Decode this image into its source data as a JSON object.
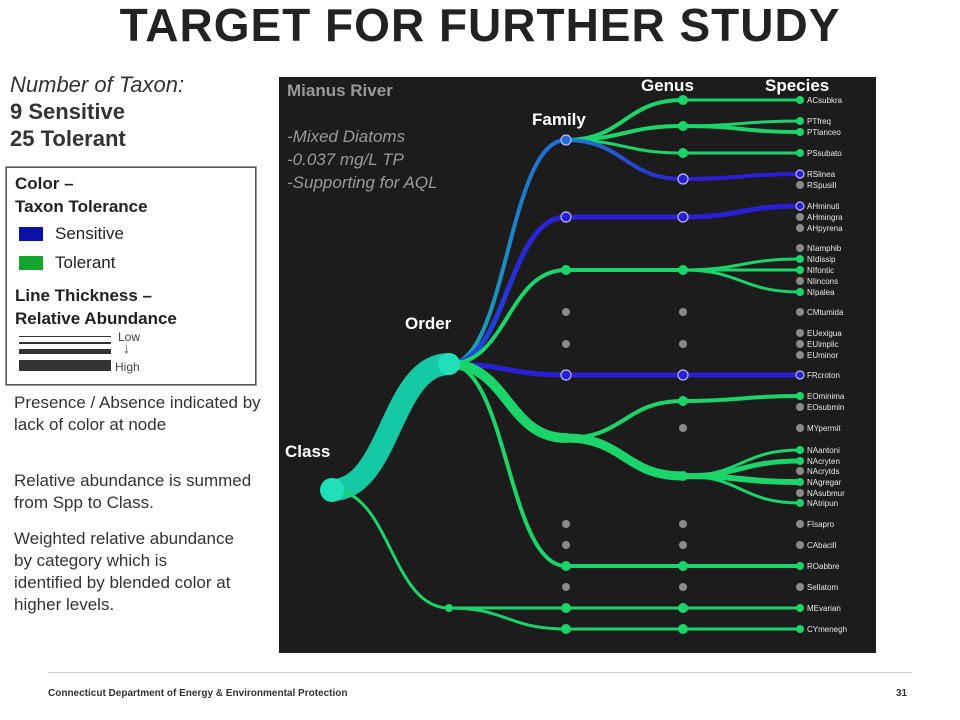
{
  "title": "TARGET FOR FURTHER STUDY",
  "taxon": {
    "label": "Number of Taxon:",
    "sensitive": "9 Sensitive",
    "tolerant": "25 Tolerant"
  },
  "legend": {
    "color_heading_1": "Color –",
    "color_heading_2": "Taxon Tolerance",
    "sensitive_label": "Sensitive",
    "tolerant_label": "Tolerant",
    "sensitive_color": "#0a10a8",
    "tolerant_color": "#13a52c",
    "thick_heading_1": "Line Thickness –",
    "thick_heading_2": "Relative Abundance",
    "low": "Low",
    "arrow": "↓",
    "high": "High"
  },
  "notes": {
    "presence": "Presence /  Absence indicated by lack of color at node",
    "summed": "Relative abundance is summed from Spp to Class.",
    "weighted": "Weighted relative abundance by category which is identified by blended color at higher levels."
  },
  "panel": {
    "river": "Mianus River",
    "desc": [
      "-Mixed Diatoms",
      "-0.037 mg/L TP",
      "-Supporting for AQL"
    ],
    "levels": {
      "class": "Class",
      "order": "Order",
      "family": "Family",
      "genus": "Genus",
      "species": "Species"
    },
    "colors": {
      "sensitive": "#2b1fd6",
      "tolerant": "#1bd46a",
      "absent": "#8a8a8a",
      "class_node": "#1fe0b8"
    },
    "species": [
      {
        "name": "ACsubkra",
        "status": "tolerant"
      },
      {
        "name": "PTfreq",
        "status": "tolerant"
      },
      {
        "name": "PTlanceo",
        "status": "tolerant"
      },
      {
        "name": "PSsubato",
        "status": "tolerant"
      },
      {
        "name": "RSlinea",
        "status": "sensitive"
      },
      {
        "name": "RSpusill",
        "status": "absent"
      },
      {
        "name": "AHminuti",
        "status": "sensitive"
      },
      {
        "name": "AHmingra",
        "status": "absent"
      },
      {
        "name": "AHpyrena",
        "status": "absent"
      },
      {
        "name": "NIamphib",
        "status": "absent"
      },
      {
        "name": "NIdissip",
        "status": "tolerant"
      },
      {
        "name": "NIfontic",
        "status": "tolerant"
      },
      {
        "name": "NIincons",
        "status": "absent"
      },
      {
        "name": "NIpalea",
        "status": "tolerant"
      },
      {
        "name": "CMtumida",
        "status": "absent"
      },
      {
        "name": "EUexigua",
        "status": "absent"
      },
      {
        "name": "EUimplic",
        "status": "absent"
      },
      {
        "name": "EUminor",
        "status": "absent"
      },
      {
        "name": "FRcroton",
        "status": "sensitive"
      },
      {
        "name": "EOminima",
        "status": "tolerant"
      },
      {
        "name": "EOsubmin",
        "status": "absent"
      },
      {
        "name": "MYpermit",
        "status": "absent"
      },
      {
        "name": "NAantoni",
        "status": "tolerant"
      },
      {
        "name": "NAcryten",
        "status": "tolerant"
      },
      {
        "name": "NAcrytds",
        "status": "absent"
      },
      {
        "name": "NAgregar",
        "status": "tolerant"
      },
      {
        "name": "NAsubmur",
        "status": "absent"
      },
      {
        "name": "NAtripun",
        "status": "tolerant"
      },
      {
        "name": "FIsapro",
        "status": "absent"
      },
      {
        "name": "CAbacill",
        "status": "absent"
      },
      {
        "name": "ROabbre",
        "status": "tolerant"
      },
      {
        "name": "Sellatom",
        "status": "absent"
      },
      {
        "name": "MEvarian",
        "status": "tolerant"
      },
      {
        "name": "CYmenegh",
        "status": "tolerant"
      }
    ]
  },
  "footer": {
    "org": "Connecticut Department of Energy & Environmental Protection",
    "page": "31"
  }
}
